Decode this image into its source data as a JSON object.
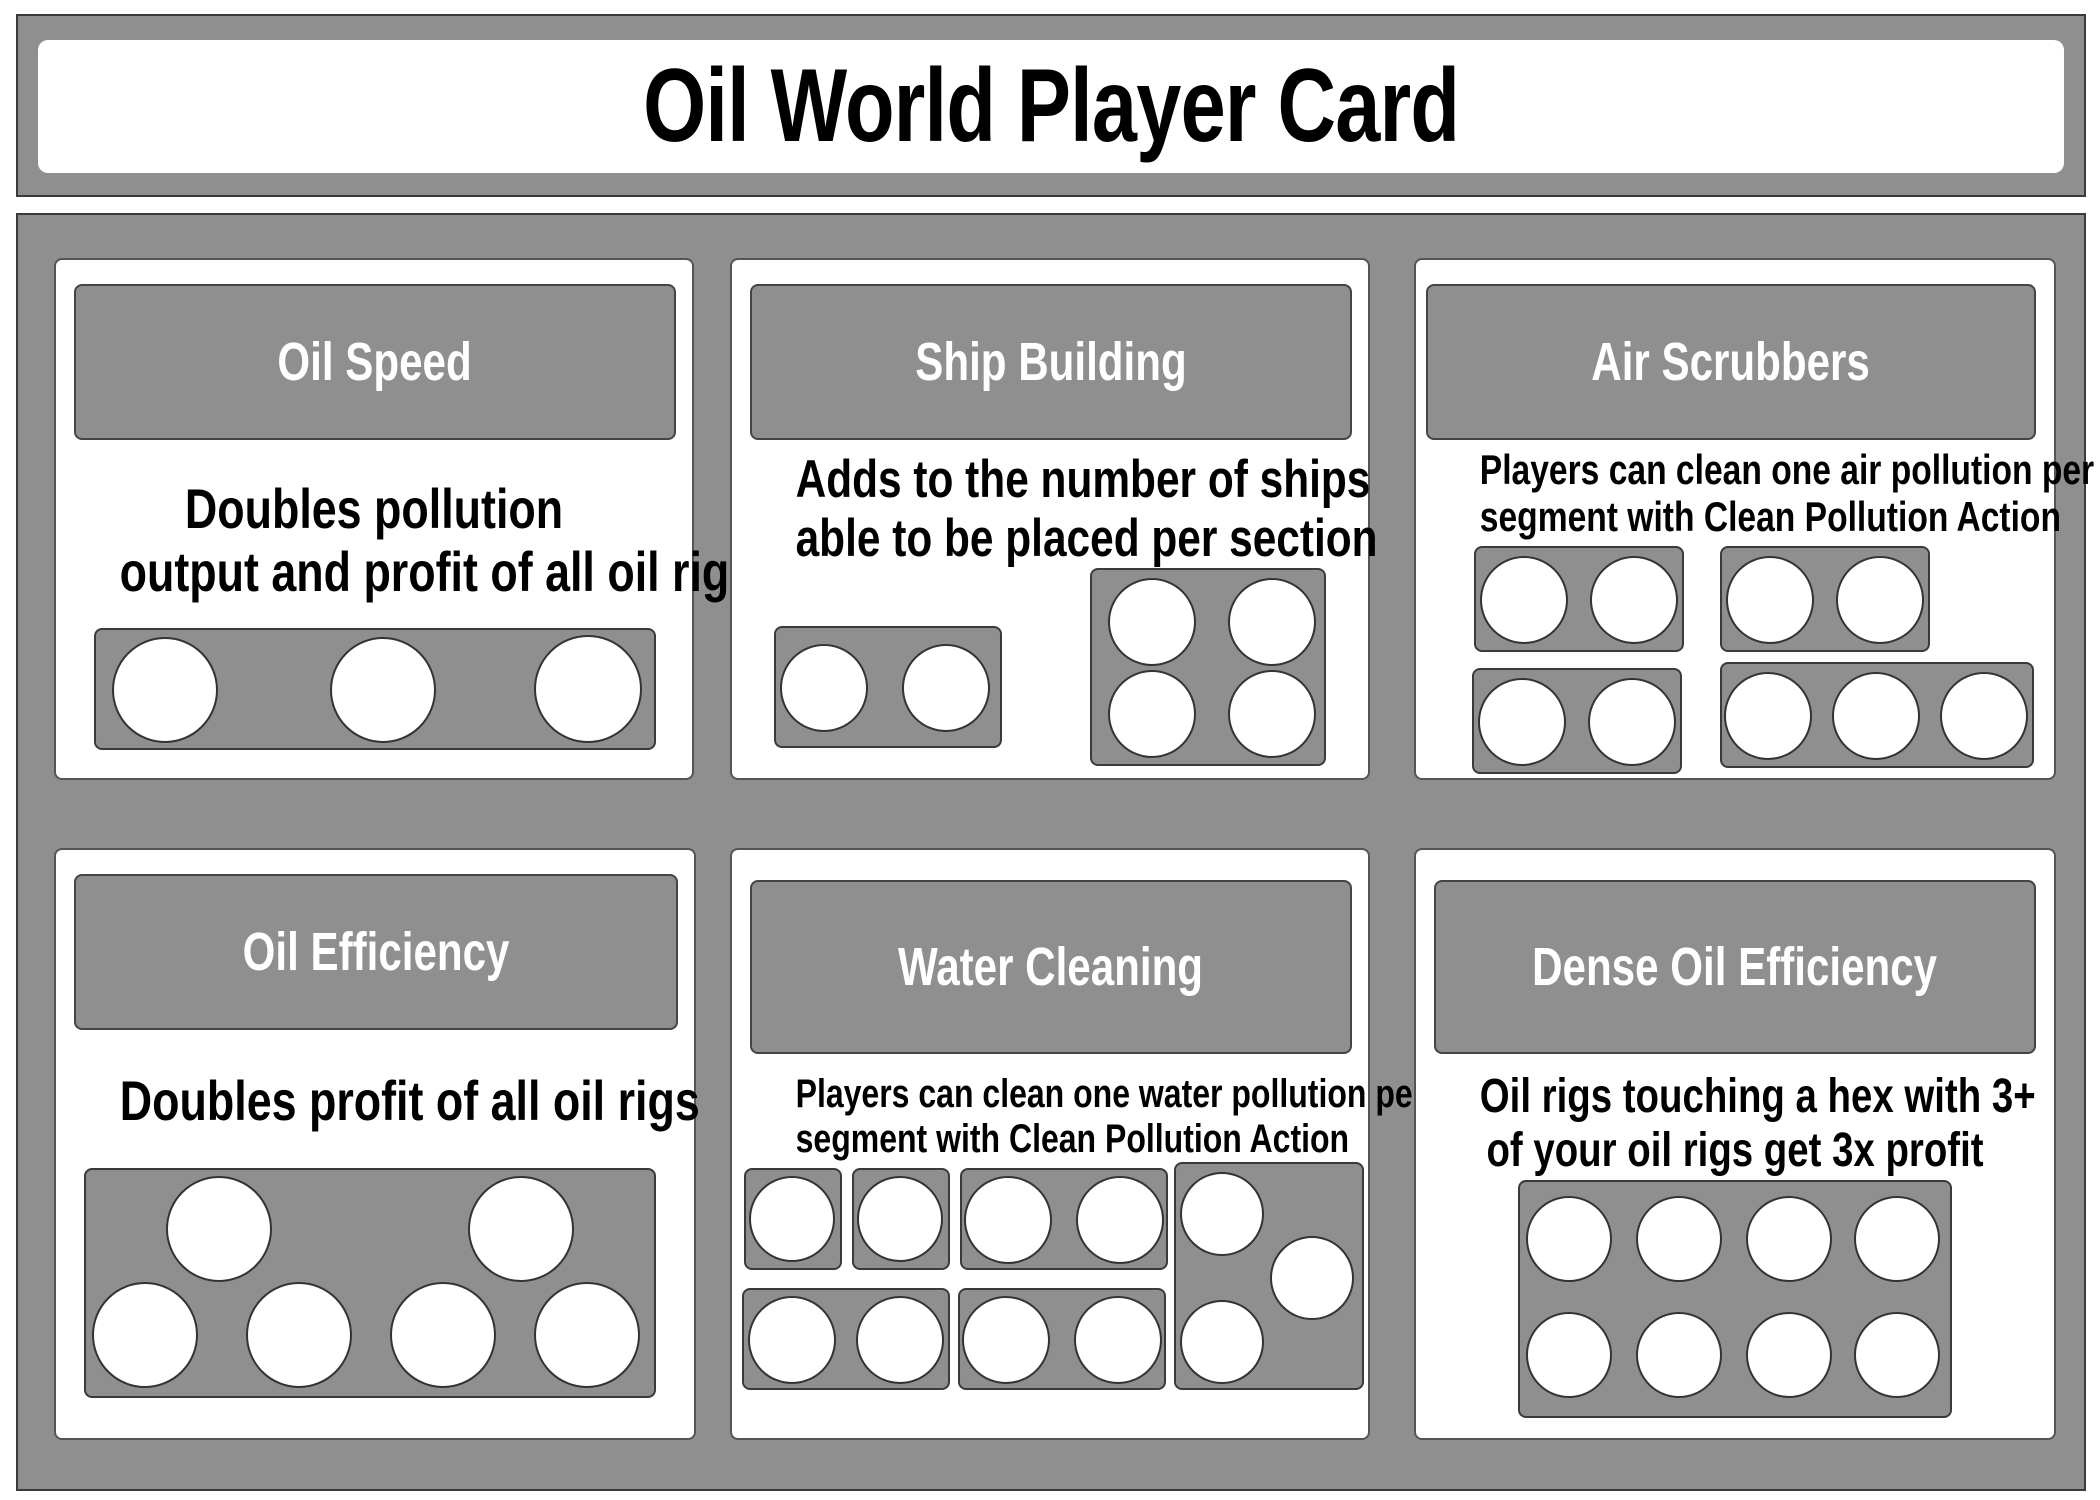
{
  "title": "Oil World Player Card",
  "colors": {
    "board": "#8f8f8f",
    "panel": "#ffffff",
    "slot": "#ffffff",
    "outline": "#333333"
  },
  "cards": {
    "oil_speed": {
      "title": "Oil Speed",
      "description": [
        "Doubles pollution",
        "output and profit of all oil rigs"
      ],
      "slot_count": 3
    },
    "ship_building": {
      "title": "Ship Building",
      "description": [
        "Adds to the number of ships",
        "able to be placed per section"
      ],
      "slot_count": 6
    },
    "air_scrubbers": {
      "title": "Air Scrubbers",
      "description": [
        "Players can clean one air pollution per",
        "segment with Clean Pollution Action"
      ],
      "slot_count": 9
    },
    "oil_efficiency": {
      "title": "Oil Efficiency",
      "description": [
        "Doubles profit of all oil rigs"
      ],
      "slot_count": 6
    },
    "water_cleaning": {
      "title": "Water Cleaning",
      "description": [
        "Players can clean one water pollution per",
        "segment with Clean Pollution Action"
      ],
      "slot_count": 13
    },
    "dense_oil_efficiency": {
      "title": "Dense Oil Efficiency",
      "description": [
        "Oil rigs touching a hex with 3+",
        "of your oil rigs get 3x profit"
      ],
      "slot_count": 8
    }
  }
}
